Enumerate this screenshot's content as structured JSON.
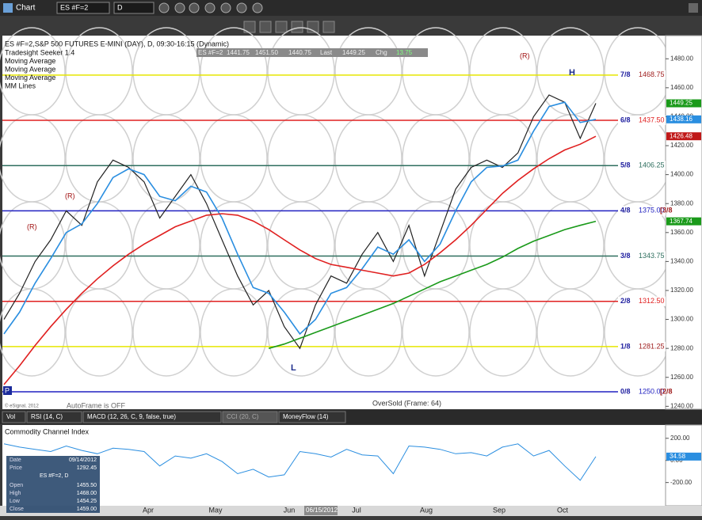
{
  "toolbar": {
    "title": "Chart",
    "symbol": "ES #F=2",
    "interval": "D"
  },
  "header": {
    "symbol_line": "ES #F=2,S&P 500 FUTURES E-MINI (DAY), D, 09:30-16:15 (Dynamic)",
    "studies": [
      "Tradesight Seeker 1.4",
      "Moving Average",
      "Moving Average",
      "Moving Average",
      "MM Lines"
    ]
  },
  "quote": [
    "ES #F=2",
    "1441.75",
    "1451.50",
    "1440.75",
    "Last",
    "1449.25",
    "Chg",
    "13.75"
  ],
  "price_chart": {
    "ylim": [
      1238,
      1496
    ],
    "yticks": [
      {
        "value": 1480,
        "label": "1480.00"
      },
      {
        "value": 1460,
        "label": "1460.00"
      },
      {
        "value": 1440,
        "label": "1440.00"
      },
      {
        "value": 1420,
        "label": "1420.00"
      },
      {
        "value": 1400,
        "label": "1400.00"
      },
      {
        "value": 1380,
        "label": "1380.00"
      },
      {
        "value": 1360,
        "label": "1360.00"
      },
      {
        "value": 1340,
        "label": "1340.00"
      },
      {
        "value": 1320,
        "label": "1320.00"
      },
      {
        "value": 1300,
        "label": "1300.00"
      },
      {
        "value": 1280,
        "label": "1280.00"
      },
      {
        "value": 1260,
        "label": "1260.00"
      },
      {
        "value": 1240,
        "label": "1240.00"
      }
    ],
    "murrey": [
      {
        "label": "7/8",
        "value": 1468.75,
        "value_label": "1468.75",
        "color": "#e6e600"
      },
      {
        "label": "6/8",
        "value": 1437.5,
        "value_label": "1437.50",
        "color": "#e02020"
      },
      {
        "label": "5/8",
        "value": 1406.25,
        "value_label": "1406.25",
        "color": "#2f6f5f"
      },
      {
        "label": "4/8",
        "value": 1375,
        "value_label": "1375.00",
        "color": "#2020c0",
        "extra": "[3/8"
      },
      {
        "label": "3/8",
        "value": 1343.75,
        "value_label": "1343.75",
        "color": "#2f6f5f"
      },
      {
        "label": "2/8",
        "value": 1312.5,
        "value_label": "1312.50",
        "color": "#e02020"
      },
      {
        "label": "1/8",
        "value": 1281.25,
        "value_label": "1281.25",
        "color": "#e6e600"
      },
      {
        "label": "0/8",
        "value": 1250,
        "value_label": "1250.00",
        "color": "#2020c0",
        "extra": "[2/8"
      }
    ],
    "series": [
      {
        "color": "#222222",
        "values": [
          1300,
          1318,
          1340,
          1355,
          1375,
          1365,
          1395,
          1410,
          1405,
          1395,
          1370,
          1385,
          1400,
          1380,
          1355,
          1330,
          1310,
          1320,
          1295,
          1280,
          1310,
          1330,
          1325,
          1345,
          1360,
          1340,
          1365,
          1330,
          1360,
          1390,
          1405,
          1410,
          1405,
          1415,
          1440,
          1455,
          1450,
          1425,
          1449.25
        ]
      },
      {
        "name": "Moving Average",
        "color": "#2a8ee0",
        "values": [
          1290,
          1305,
          1325,
          1342,
          1360,
          1366,
          1380,
          1398,
          1404,
          1400,
          1385,
          1382,
          1392,
          1388,
          1370,
          1345,
          1322,
          1318,
          1305,
          1290,
          1300,
          1318,
          1322,
          1335,
          1350,
          1345,
          1355,
          1340,
          1352,
          1375,
          1395,
          1405,
          1406,
          1410,
          1430,
          1447,
          1450,
          1436,
          1438.16
        ]
      },
      {
        "name": "Moving Average",
        "color": "#e02020",
        "values": [
          1255,
          1268,
          1282,
          1295,
          1307,
          1318,
          1328,
          1337,
          1345,
          1352,
          1358,
          1364,
          1368,
          1372,
          1373,
          1372,
          1368,
          1362,
          1355,
          1348,
          1342,
          1338,
          1336,
          1334,
          1332,
          1330,
          1332,
          1338,
          1346,
          1355,
          1365,
          1376,
          1387,
          1396,
          1404,
          1411,
          1417,
          1421,
          1426.48
        ]
      },
      {
        "name": "Moving Average",
        "color": "#1a9a1a",
        "values": [
          null,
          null,
          null,
          null,
          null,
          null,
          null,
          null,
          null,
          null,
          null,
          null,
          null,
          null,
          null,
          null,
          null,
          1280,
          1283,
          1287,
          1291,
          1295,
          1299,
          1303,
          1307,
          1311,
          1316,
          1321,
          1326,
          1330,
          1334,
          1338,
          1343,
          1349,
          1354,
          1358,
          1362,
          1365,
          1367.74
        ]
      }
    ],
    "tags": [
      {
        "value": 1449.25,
        "label": "1449.25",
        "color": "#1a9a1a"
      },
      {
        "value": 1438.16,
        "label": "1438.16",
        "color": "#2a8ee0"
      },
      {
        "value": 1426.48,
        "label": "1426.48",
        "color": "#c01818"
      },
      {
        "value": 1367.74,
        "label": "1367.74",
        "color": "#1a9a1a"
      }
    ],
    "annotations": {
      "low": "L",
      "high": "H",
      "reversals": [
        "(R)",
        "(R)",
        "(R)"
      ],
      "autoframe": "AutoFrame is OFF",
      "oversold": "OverSold (Frame: 64)",
      "copyright": "© eSignal, 2012",
      "p": "P"
    }
  },
  "tabs": [
    "Vol",
    "RSI (14, C)",
    "MACD (12, 26, C, 9, false, true)",
    "CCI (20, C)",
    "MoneyFlow (14)"
  ],
  "cci": {
    "title": "Commodity Channel Index",
    "ylim": [
      -410,
      320
    ],
    "yticks": [
      {
        "value": 200,
        "label": "200.00"
      },
      {
        "value": 0,
        "label": "0.00"
      },
      {
        "value": -200,
        "label": "-200.00"
      }
    ],
    "color": "#2a8ee0",
    "values": [
      150,
      120,
      100,
      80,
      130,
      90,
      60,
      110,
      100,
      80,
      -50,
      40,
      20,
      60,
      -10,
      -120,
      -80,
      -150,
      -130,
      80,
      60,
      30,
      100,
      50,
      40,
      -120,
      130,
      120,
      100,
      60,
      70,
      40,
      120,
      150,
      40,
      90,
      -50,
      -180,
      34.58
    ],
    "tag": {
      "value": 34.58,
      "label": "34.58"
    }
  },
  "date_axis": [
    "Apr",
    "May",
    "Jun",
    "Jul",
    "Aug",
    "Sep",
    "Oct"
  ],
  "cursor_date": "06/15/2012",
  "data_window": {
    "rows": [
      [
        "Date",
        "09/14/2012"
      ],
      [
        "Price",
        "1292.45"
      ],
      [
        "",
        "ES #F=2, D"
      ],
      [
        "Open",
        "1455.50"
      ],
      [
        "High",
        "1468.00"
      ],
      [
        "Low",
        "1454.25"
      ],
      [
        "Close",
        "1459.00"
      ]
    ]
  }
}
